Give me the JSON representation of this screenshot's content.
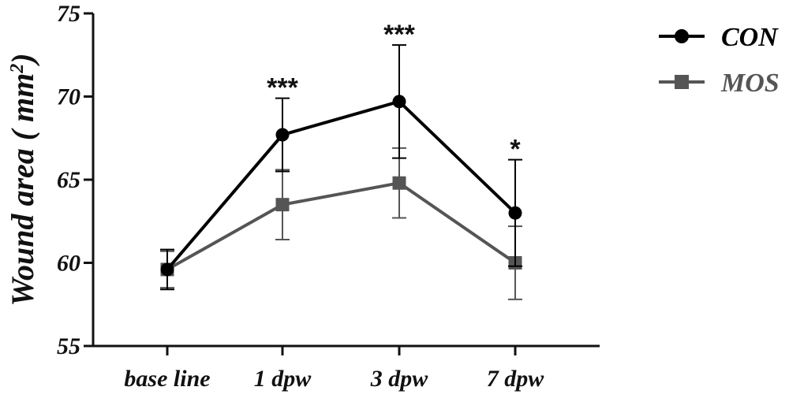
{
  "chart_data": {
    "type": "line",
    "ylabel": "Wound area",
    "ylabel_unit": "mm",
    "ylabel_unit_power": "2",
    "ylim": [
      55,
      75
    ],
    "yticks": [
      55,
      60,
      65,
      70,
      75
    ],
    "categories": [
      "base line",
      "1 dpw",
      "3 dpw",
      "7 dpw"
    ],
    "series": [
      {
        "name": "CON",
        "color": "#000000",
        "marker": "circle",
        "values": [
          59.6,
          67.7,
          69.7,
          63.0
        ],
        "error": [
          1.2,
          2.2,
          3.4,
          3.2
        ]
      },
      {
        "name": "MOS",
        "color": "#555555",
        "marker": "square",
        "values": [
          59.6,
          63.5,
          64.8,
          60.0
        ],
        "error": [
          1.1,
          2.1,
          2.1,
          2.2
        ]
      }
    ],
    "significance": [
      "",
      "***",
      "***",
      "*"
    ],
    "legend_position": "top-right",
    "grid": false
  }
}
